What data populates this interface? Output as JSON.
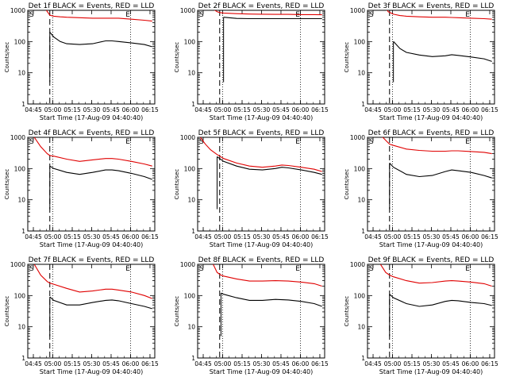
{
  "chart_data": {
    "type": "line",
    "y_scale": "log",
    "ylim": [
      1,
      1000
    ],
    "xlabel": "Start Time (17-Aug-09 04:40:40)",
    "ylabel": "Counts/sec",
    "x_tick_labels": [
      "04:45",
      "05:00",
      "05:15",
      "05:30",
      "05:45",
      "06:00",
      "06:15"
    ],
    "y_tick_labels": [
      "1",
      "10",
      "100",
      "1000"
    ],
    "x_tick_minutes": [
      4.3,
      19.3,
      34.3,
      49.3,
      64.3,
      79.3,
      94.3
    ],
    "corner_labels": {
      "start": "S",
      "end": "E"
    },
    "series_colors": {
      "events": "#000000",
      "lld": "#e00000"
    },
    "panels": [
      {
        "title": "Det 1f BLACK = Events, RED = LLD",
        "x": [
          13,
          17,
          20,
          25,
          30,
          40,
          50,
          60,
          65,
          70,
          80,
          90,
          96
        ],
        "events": [
          null,
          200,
          140,
          100,
          85,
          80,
          85,
          105,
          105,
          100,
          90,
          80,
          68
        ],
        "lld": [
          1200,
          700,
          650,
          620,
          600,
          580,
          560,
          560,
          560,
          560,
          520,
          480,
          450
        ]
      },
      {
        "title": "Det 2f BLACK = Events, RED = LLD",
        "x": [
          0,
          8,
          12,
          15,
          17,
          20,
          30,
          40,
          50,
          60,
          70,
          80,
          90,
          96
        ],
        "events": [
          null,
          null,
          null,
          null,
          null,
          600,
          550,
          540,
          540,
          540,
          540,
          540,
          540,
          540
        ],
        "lld": [
          1200,
          1200,
          1100,
          900,
          850,
          820,
          780,
          760,
          750,
          740,
          740,
          730,
          730,
          720
        ]
      },
      {
        "title": "Det 3f BLACK = Events, RED = LLD",
        "x": [
          14,
          16,
          20,
          25,
          30,
          40,
          50,
          60,
          65,
          70,
          80,
          90,
          96
        ],
        "events": [
          null,
          null,
          100,
          60,
          45,
          37,
          33,
          35,
          38,
          36,
          32,
          28,
          23
        ],
        "lld": [
          1200,
          900,
          750,
          680,
          650,
          620,
          600,
          600,
          590,
          580,
          560,
          540,
          520
        ]
      },
      {
        "title": "Det 4f BLACK = Events, RED = LLD",
        "x": [
          5,
          10,
          15,
          17,
          20,
          30,
          40,
          50,
          60,
          65,
          70,
          80,
          90,
          96
        ],
        "events": [
          null,
          null,
          null,
          120,
          100,
          75,
          65,
          75,
          90,
          90,
          85,
          70,
          55,
          45
        ],
        "lld": [
          1000,
          500,
          300,
          260,
          250,
          200,
          170,
          190,
          210,
          210,
          200,
          170,
          140,
          120
        ]
      },
      {
        "title": "Det 5f BLACK = Events, RED = LLD",
        "x": [
          2,
          6,
          10,
          15,
          20,
          30,
          40,
          50,
          60,
          65,
          70,
          80,
          90,
          96
        ],
        "events": [
          null,
          null,
          null,
          240,
          170,
          120,
          95,
          90,
          100,
          110,
          105,
          90,
          75,
          65
        ],
        "lld": [
          1000,
          600,
          400,
          280,
          210,
          150,
          120,
          110,
          120,
          130,
          125,
          110,
          95,
          80
        ]
      },
      {
        "title": "Det 6f BLACK = Events, RED = LLD",
        "x": [
          10,
          14,
          17,
          20,
          30,
          40,
          50,
          60,
          65,
          70,
          80,
          90,
          96
        ],
        "events": [
          null,
          null,
          150,
          110,
          65,
          55,
          60,
          80,
          90,
          85,
          75,
          60,
          50
        ],
        "lld": [
          1200,
          800,
          600,
          550,
          420,
          380,
          360,
          360,
          370,
          370,
          350,
          330,
          300
        ]
      },
      {
        "title": "Det 7f BLACK = Events, RED = LLD",
        "x": [
          5,
          10,
          15,
          17,
          20,
          30,
          40,
          50,
          60,
          65,
          70,
          80,
          90,
          96
        ],
        "events": [
          null,
          null,
          null,
          90,
          70,
          50,
          50,
          60,
          70,
          72,
          68,
          55,
          45,
          38
        ],
        "lld": [
          1000,
          450,
          280,
          250,
          230,
          170,
          130,
          140,
          160,
          160,
          150,
          130,
          100,
          80
        ]
      },
      {
        "title": "Det 8f BLACK = Events, RED = LLD",
        "x": [
          12,
          15,
          18,
          20,
          30,
          40,
          50,
          60,
          70,
          80,
          90,
          96
        ],
        "events": [
          null,
          null,
          120,
          110,
          85,
          70,
          70,
          75,
          72,
          65,
          55,
          45
        ],
        "lld": [
          1000,
          550,
          450,
          420,
          340,
          290,
          290,
          300,
          290,
          270,
          240,
          200
        ]
      },
      {
        "title": "Det 9f BLACK = Events, RED = LLD",
        "x": [
          10,
          14,
          17,
          20,
          30,
          40,
          50,
          60,
          65,
          70,
          80,
          90,
          96
        ],
        "events": [
          null,
          null,
          110,
          85,
          55,
          45,
          50,
          65,
          70,
          68,
          60,
          55,
          48
        ],
        "lld": [
          1000,
          550,
          450,
          400,
          300,
          250,
          260,
          290,
          300,
          290,
          270,
          240,
          200
        ]
      }
    ]
  }
}
